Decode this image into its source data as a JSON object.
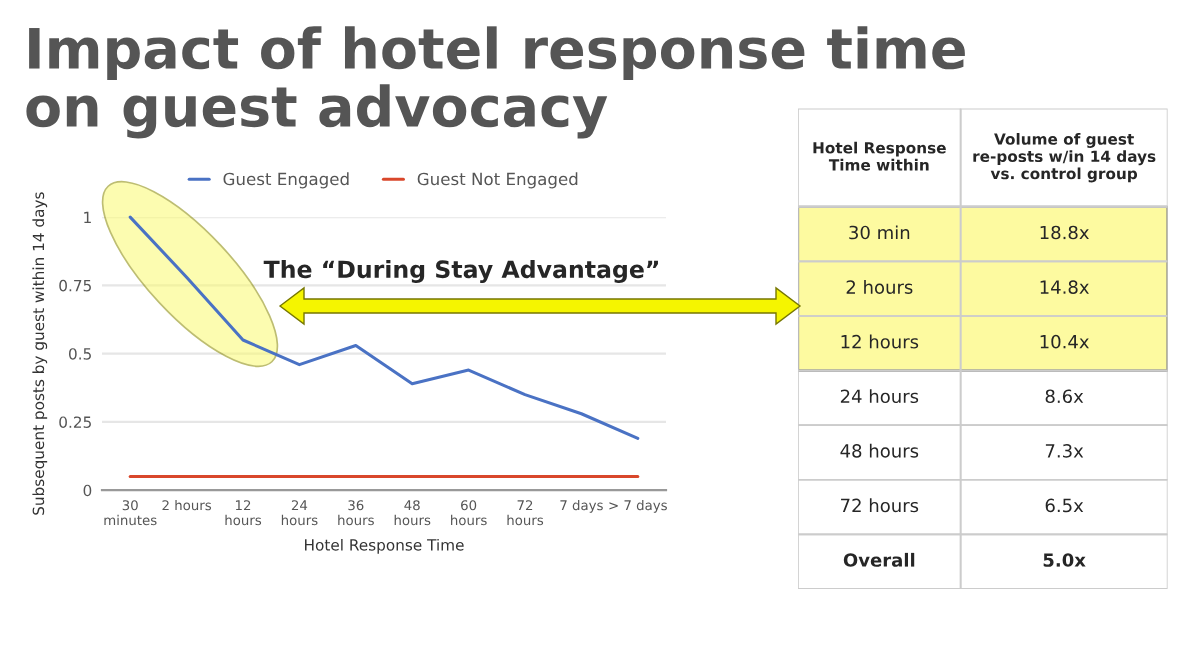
{
  "chart_data": [
    {
      "type": "line",
      "title": "Impact of hotel response time\non guest advocacy",
      "xlabel": "Hotel Response Time",
      "ylabel": "Subsequent posts by guest within 14 days",
      "categories": [
        "30\nminutes",
        "2 hours",
        "12\nhours",
        "24\nhours",
        "36\nhours",
        "48\nhours",
        "60\nhours",
        "72\nhours",
        "7 days",
        "> 7 days"
      ],
      "series": [
        {
          "name": "Guest Engaged",
          "color": "#4a72c4",
          "values": [
            1.0,
            0.78,
            0.55,
            0.46,
            0.53,
            0.39,
            0.44,
            0.35,
            0.28,
            0.19
          ]
        },
        {
          "name": "Guest Not Engaged",
          "color": "#d9472b",
          "values": [
            0.05,
            0.05,
            0.05,
            0.05,
            0.05,
            0.05,
            0.05,
            0.05,
            0.05,
            0.05
          ]
        }
      ],
      "ylim": [
        0,
        1
      ],
      "yticks": [
        0,
        0.25,
        0.5,
        0.75,
        1
      ],
      "grid": "y",
      "legend": "top",
      "marker": "none",
      "line_style": "solid",
      "annotations": [
        "The “During Stay Advantage”"
      ]
    },
    {
      "type": "other",
      "annotations": [
        "Hotel Response\nTime within",
        "Volume of guest\nre-posts w/in 14 days\nvs. control group",
        "30 min",
        "18.8x",
        "2 hours",
        "14.8x",
        "12 hours",
        "10.4x",
        "24 hours",
        "8.6x",
        "48 hours",
        "7.3x",
        "72 hours",
        "6.5x",
        "Overall",
        "5.0x"
      ]
    }
  ]
}
